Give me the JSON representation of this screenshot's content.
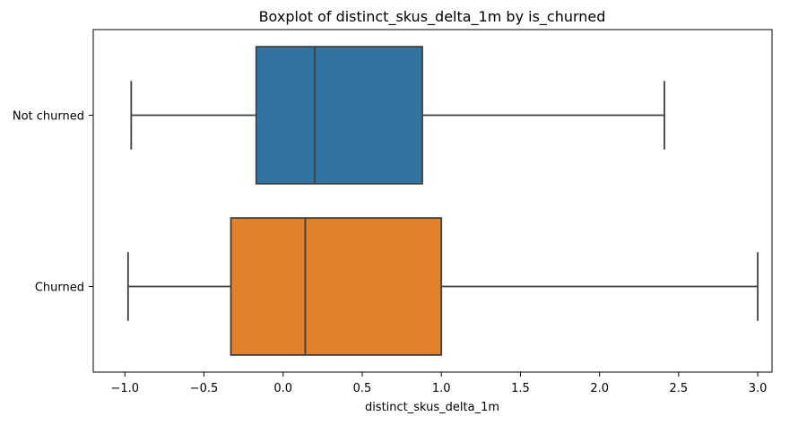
{
  "chart_data": {
    "type": "boxplot",
    "orientation": "horizontal",
    "title": "Boxplot of distinct_skus_delta_1m by is_churned",
    "xlabel": "distinct_skus_delta_1m",
    "ylabel": "",
    "xlim": [
      -1.2,
      3.09
    ],
    "xticks": [
      -1.0,
      -0.5,
      0.0,
      0.5,
      1.0,
      1.5,
      2.0,
      2.5,
      3.0
    ],
    "xtick_labels": [
      "−1.0",
      "−0.5",
      "0.0",
      "0.5",
      "1.0",
      "1.5",
      "2.0",
      "2.5",
      "3.0"
    ],
    "grid": false,
    "legend": "none",
    "categories": [
      "Not churned",
      "Churned"
    ],
    "series": [
      {
        "category": "Not churned",
        "whisker_low": -0.96,
        "q1": -0.17,
        "median": 0.2,
        "q3": 0.88,
        "whisker_high": 2.41,
        "color": "#3274a1"
      },
      {
        "category": "Churned",
        "whisker_low": -0.98,
        "q1": -0.33,
        "median": 0.14,
        "q3": 1.0,
        "whisker_high": 3.0,
        "color": "#e1812c"
      }
    ],
    "line_color": "#3f3f3f"
  }
}
